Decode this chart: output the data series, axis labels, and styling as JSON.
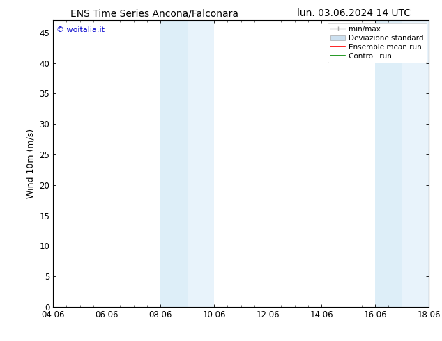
{
  "title_left": "ENS Time Series Ancona/Falconara",
  "title_right": "lun. 03.06.2024 14 UTC",
  "ylabel": "Wind 10m (m/s)",
  "xlim": [
    0,
    14
  ],
  "ylim": [
    0,
    47
  ],
  "yticks": [
    0,
    5,
    10,
    15,
    20,
    25,
    30,
    35,
    40,
    45
  ],
  "xtick_labels": [
    "04.06",
    "06.06",
    "08.06",
    "10.06",
    "12.06",
    "14.06",
    "16.06",
    "18.06"
  ],
  "xtick_positions": [
    0,
    2,
    4,
    6,
    8,
    10,
    12,
    14
  ],
  "shaded_bands": [
    {
      "x_start": 4.0,
      "x_end": 5.0,
      "color": "#ddeef8"
    },
    {
      "x_start": 5.0,
      "x_end": 6.0,
      "color": "#e8f3fb"
    },
    {
      "x_start": 12.0,
      "x_end": 13.0,
      "color": "#ddeef8"
    },
    {
      "x_start": 13.0,
      "x_end": 14.0,
      "color": "#e8f3fb"
    }
  ],
  "watermark_text": "© woitalia.it",
  "watermark_color": "#0000cc",
  "background_color": "#ffffff",
  "title_fontsize": 10,
  "tick_fontsize": 8.5,
  "ylabel_fontsize": 9,
  "legend_fontsize": 7.5,
  "minmax_color": "#aaaaaa",
  "std_color": "#cce0f0",
  "ensemble_color": "#ff0000",
  "control_color": "#008800"
}
